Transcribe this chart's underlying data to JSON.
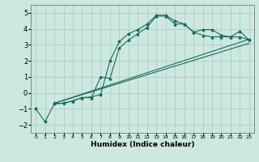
{
  "title": "",
  "xlabel": "Humidex (Indice chaleur)",
  "xlim": [
    -0.5,
    23.5
  ],
  "ylim": [
    -2.5,
    5.5
  ],
  "yticks": [
    -2,
    -1,
    0,
    1,
    2,
    3,
    4,
    5
  ],
  "xticks": [
    0,
    1,
    2,
    3,
    4,
    5,
    6,
    7,
    8,
    9,
    10,
    11,
    12,
    13,
    14,
    15,
    16,
    17,
    18,
    19,
    20,
    21,
    22,
    23
  ],
  "bg_color": "#cce8e0",
  "grid_color": "#aacfc8",
  "line_color": "#1a6b5a",
  "line1_x": [
    0,
    1,
    2,
    3,
    4,
    5,
    6,
    7,
    8,
    9,
    10,
    11,
    12,
    13,
    14,
    15,
    16,
    17,
    18,
    19,
    20,
    21,
    22,
    23
  ],
  "line1_y": [
    -1.0,
    -1.8,
    -0.7,
    -0.65,
    -0.5,
    -0.3,
    -0.25,
    -0.1,
    2.0,
    3.2,
    3.7,
    3.95,
    4.3,
    4.85,
    4.85,
    4.5,
    4.3,
    3.8,
    3.95,
    3.95,
    3.6,
    3.5,
    3.85,
    3.3
  ],
  "line2_x": [
    2,
    3,
    4,
    5,
    6,
    7,
    8,
    9,
    10,
    11,
    12,
    13,
    14,
    15,
    16,
    17,
    18,
    19,
    20,
    21,
    22,
    23
  ],
  "line2_y": [
    -0.65,
    -0.65,
    -0.5,
    -0.3,
    -0.3,
    1.0,
    0.9,
    2.8,
    3.3,
    3.7,
    4.1,
    4.8,
    4.8,
    4.3,
    4.3,
    3.8,
    3.6,
    3.5,
    3.5,
    3.5,
    3.5,
    3.3
  ],
  "line3_x": [
    2,
    23
  ],
  "line3_y": [
    -0.65,
    3.35
  ],
  "line4_x": [
    2,
    23
  ],
  "line4_y": [
    -0.65,
    3.1
  ]
}
